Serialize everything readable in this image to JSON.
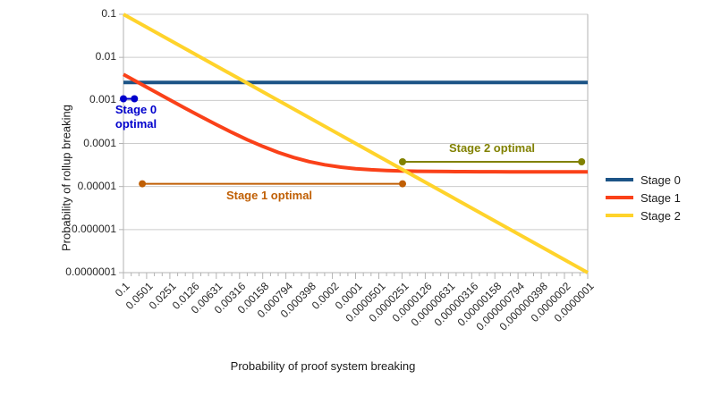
{
  "chart_data": {
    "type": "line",
    "title": "",
    "xlabel": "Probability of proof system breaking",
    "ylabel": "Probability of rollup breaking",
    "x_scale": "log",
    "y_scale": "log",
    "x_range": [
      0.1,
      1e-07
    ],
    "y_range": [
      0.1,
      1e-07
    ],
    "grid": "horizontal gridlines at each decade, no vertical gridlines",
    "legend_position": "right",
    "x_tick_labels": [
      "0.1",
      "0.0501",
      "0.0251",
      "0.0126",
      "0.00631",
      "0.00316",
      "0.00158",
      "0.000794",
      "0.000398",
      "0.0002",
      "0.0001",
      "0.0000501",
      "0.0000251",
      "0.0000126",
      "0.00000631",
      "0.00000316",
      "0.00000158",
      "0.000000794",
      "0.000000398",
      "0.0000002",
      "0.0000001"
    ],
    "y_tick_labels": [
      "0.1",
      "0.01",
      "0.001",
      "0.0001",
      "0.00001",
      "0.000001",
      "0.0000001"
    ],
    "ticks": {
      "x_label_step_decades": 0.3,
      "x_minor_step_decades": 0.1
    },
    "series": [
      {
        "name": "Stage 0",
        "color": "#1c5486",
        "description": "constant y = 0.0026",
        "points": [
          [
            0.1,
            0.0026
          ],
          [
            1e-07,
            0.0026
          ]
        ]
      },
      {
        "name": "Stage 1",
        "color": "#fa4119",
        "description": "y = 0.04x + 0.000022",
        "points": [
          [
            0.1,
            0.004022
          ],
          [
            0.0631,
            0.0025459
          ],
          [
            0.0398,
            0.0016142
          ],
          [
            0.0251,
            0.001026
          ],
          [
            0.0158,
            0.00065596
          ],
          [
            0.01,
            0.000422
          ],
          [
            0.00631,
            0.00027438
          ],
          [
            0.00398,
            0.00018124
          ],
          [
            0.00251,
            0.00012248
          ],
          [
            0.00158,
            8.56e-05
          ],
          [
            0.001,
            6.2e-05
          ],
          [
            0.000631,
            4.72e-05
          ],
          [
            0.000398,
            3.79e-05
          ],
          [
            0.000251,
            3.2e-05
          ],
          [
            0.000158,
            2.83e-05
          ],
          [
            0.0001,
            2.6e-05
          ],
          [
            6.31e-05,
            2.45e-05
          ],
          [
            3.98e-05,
            2.36e-05
          ],
          [
            2.51e-05,
            2.3e-05
          ],
          [
            1.58e-05,
            2.26e-05
          ],
          [
            1e-05,
            2.24e-05
          ],
          [
            6.31e-06,
            2.23e-05
          ],
          [
            3.98e-06,
            2.22e-05
          ],
          [
            2.51e-06,
            2.21e-05
          ],
          [
            1.58e-06,
            2.21e-05
          ],
          [
            1e-06,
            2.2e-05
          ],
          [
            1e-07,
            2.2e-05
          ]
        ]
      },
      {
        "name": "Stage 2",
        "color": "#ffd32b",
        "description": "y = x",
        "points": [
          [
            0.1,
            0.1
          ],
          [
            1e-07,
            1e-07
          ]
        ]
      }
    ],
    "annotations": [
      {
        "id": "stage0-optimal",
        "label": "Stage 0 optimal",
        "color": "#0000cc",
        "x1": 0.1,
        "x2": 0.072,
        "y": 0.00109,
        "label_pos": "below"
      },
      {
        "id": "stage1-optimal",
        "label": "Stage 1 optimal",
        "color": "#c05f04",
        "x1": 0.057,
        "x2": 2.47e-05,
        "y": 1.16e-05,
        "label_pos": "below"
      },
      {
        "id": "stage2-optimal",
        "label": "Stage 2 optimal",
        "color": "#818100",
        "x1": 2.47e-05,
        "x2": 1.2e-07,
        "y": 3.75e-05,
        "label_pos": "above"
      }
    ]
  }
}
